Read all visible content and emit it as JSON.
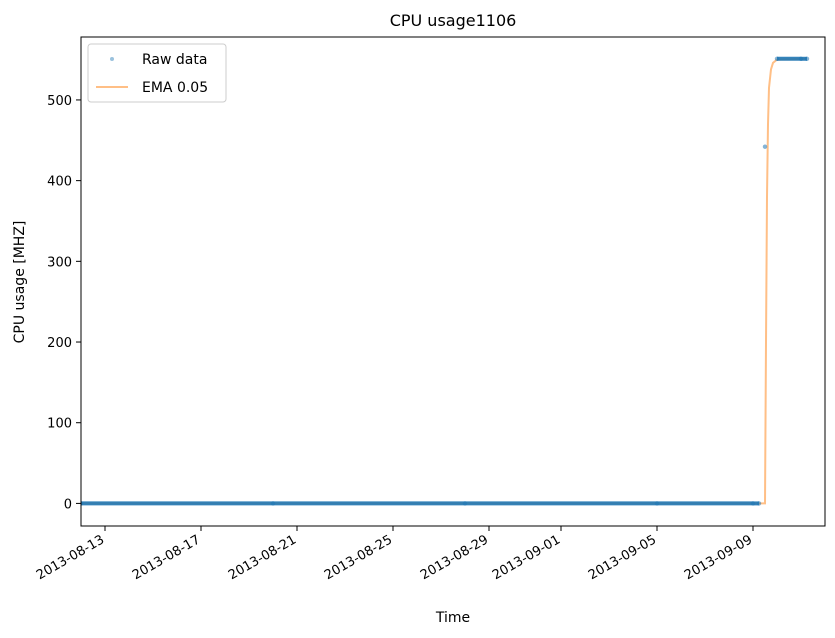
{
  "chart_data": {
    "type": "line",
    "title": "CPU usage1106",
    "xlabel": "Time",
    "ylabel": "CPU usage [MHZ]",
    "x_ticks": [
      "2013-08-13",
      "2013-08-17",
      "2013-08-21",
      "2013-08-25",
      "2013-08-29",
      "2013-09-01",
      "2013-09-05",
      "2013-09-09"
    ],
    "y_ticks": [
      0,
      100,
      200,
      300,
      400,
      500
    ],
    "xlim": [
      "2013-08-12",
      "2013-09-12"
    ],
    "ylim": [
      -28,
      578
    ],
    "legend_position": "top-left",
    "series": [
      {
        "name": "Raw data",
        "style": "points",
        "color": "#1f77b4",
        "x": [
          "2013-08-12",
          "2013-08-20",
          "2013-08-28",
          "2013-09-05",
          "2013-09-09",
          "2013-09-09 06:00",
          "2013-09-09 12:00",
          "2013-09-10",
          "2013-09-11",
          "2013-09-11 06:00"
        ],
        "values": [
          0,
          0,
          0,
          0,
          0,
          0,
          442,
          551,
          551,
          551
        ]
      },
      {
        "name": "EMA 0.05",
        "style": "line",
        "color": "#ff7f0e",
        "x": [
          "2013-08-12",
          "2013-09-09 12:00",
          "2013-09-09 13:00",
          "2013-09-09 14:00",
          "2013-09-09 15:00",
          "2013-09-09 16:00",
          "2013-09-09 18:00",
          "2013-09-09 20:00",
          "2013-09-10",
          "2013-09-11 06:00"
        ],
        "values": [
          0,
          0,
          200,
          380,
          470,
          515,
          538,
          546,
          550,
          551
        ]
      }
    ]
  }
}
